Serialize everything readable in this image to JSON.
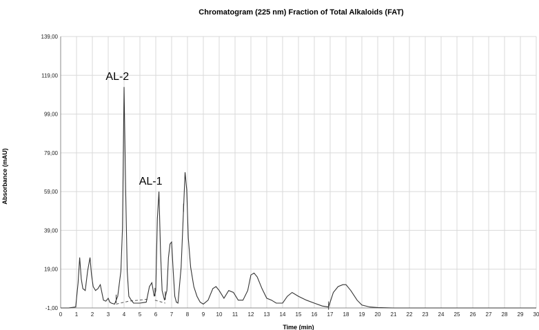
{
  "chart_data": {
    "type": "line",
    "title": "Chromatogram (225 nm) Fraction of Total Alkaloids (FAT)",
    "xlabel": "Time (min)",
    "ylabel": "Absorbance (mAU)",
    "xlim": [
      0,
      30
    ],
    "ylim": [
      -1,
      139
    ],
    "x_ticks": [
      0,
      1,
      2,
      3,
      4,
      5,
      6,
      7,
      8,
      9,
      10,
      11,
      12,
      13,
      14,
      15,
      16,
      17,
      18,
      19,
      20,
      21,
      22,
      23,
      24,
      25,
      26,
      27,
      28,
      29,
      30
    ],
    "y_ticks": [
      -1,
      19,
      39,
      59,
      79,
      99,
      119,
      139
    ],
    "y_tick_labels": [
      "-1,00",
      "19,00",
      "39,00",
      "59,00",
      "79,00",
      "99,00",
      "119,00",
      "139,00"
    ],
    "grid": true,
    "series": [
      {
        "x": [
          0,
          0.5,
          0.95,
          1.1,
          1.2,
          1.3,
          1.4,
          1.55,
          1.7,
          1.85,
          1.95,
          2.05,
          2.2,
          2.35,
          2.5,
          2.6,
          2.7,
          2.85,
          3.0,
          3.1,
          3.2,
          3.4,
          3.6,
          3.8,
          3.9,
          4.0,
          4.1,
          4.2,
          4.3,
          4.45,
          4.6,
          5.0,
          5.4,
          5.6,
          5.75,
          5.9,
          6.0,
          6.1,
          6.2,
          6.3,
          6.4,
          6.55,
          6.7,
          6.8,
          6.9,
          7.0,
          7.1,
          7.2,
          7.3,
          7.4,
          7.6,
          7.75,
          7.85,
          7.95,
          8.05,
          8.2,
          8.4,
          8.6,
          8.8,
          9.0,
          9.3,
          9.6,
          9.8,
          10.0,
          10.3,
          10.6,
          10.9,
          11.2,
          11.5,
          11.8,
          12.0,
          12.2,
          12.4,
          12.7,
          13.0,
          13.3,
          13.6,
          14.0,
          14.3,
          14.6,
          15.0,
          15.5,
          16.0,
          16.5,
          16.9,
          17.2,
          17.5,
          17.8,
          18.0,
          18.3,
          18.7,
          19.0,
          19.5,
          20.0,
          21.0,
          22.0,
          24.0,
          26.0,
          28.0,
          30.0
        ],
        "values": [
          -1,
          -1,
          -0.5,
          12,
          25,
          14,
          9,
          8,
          18,
          25,
          16,
          10,
          8,
          9,
          11,
          7,
          3,
          2.5,
          4,
          2,
          1.5,
          1,
          5,
          18,
          40,
          113,
          60,
          18,
          5,
          3,
          1.5,
          1.5,
          2,
          10,
          12,
          5,
          8,
          45,
          59,
          28,
          8,
          3,
          8,
          25,
          32,
          33,
          18,
          5,
          2,
          1.5,
          20,
          50,
          69,
          60,
          35,
          20,
          10,
          5,
          2,
          1,
          3,
          9,
          10,
          8,
          4,
          8,
          7,
          3,
          3,
          8,
          16,
          17,
          15,
          9,
          4,
          3,
          1.5,
          1.5,
          5,
          7,
          5,
          3,
          1.5,
          0,
          -0.5,
          7,
          10,
          11,
          11,
          8,
          3,
          0.5,
          -0.5,
          -0.8,
          -1,
          -1,
          -1,
          -1,
          -1,
          -1
        ]
      }
    ],
    "annotations": [
      {
        "text": "AL-2",
        "x": 4.1,
        "y": 113
      },
      {
        "text": "AL-1",
        "x": 6.2,
        "y": 59
      }
    ],
    "baseline_segments": [
      {
        "x": [
          3.5,
          4.3,
          5.5
        ],
        "y": [
          1,
          2.5,
          3.5
        ]
      },
      {
        "x": [
          5.95,
          6.6
        ],
        "y": [
          3,
          1.5
        ]
      }
    ],
    "integration_markers": [
      3.5,
      5.95,
      6.6,
      7.75,
      16.9
    ]
  }
}
